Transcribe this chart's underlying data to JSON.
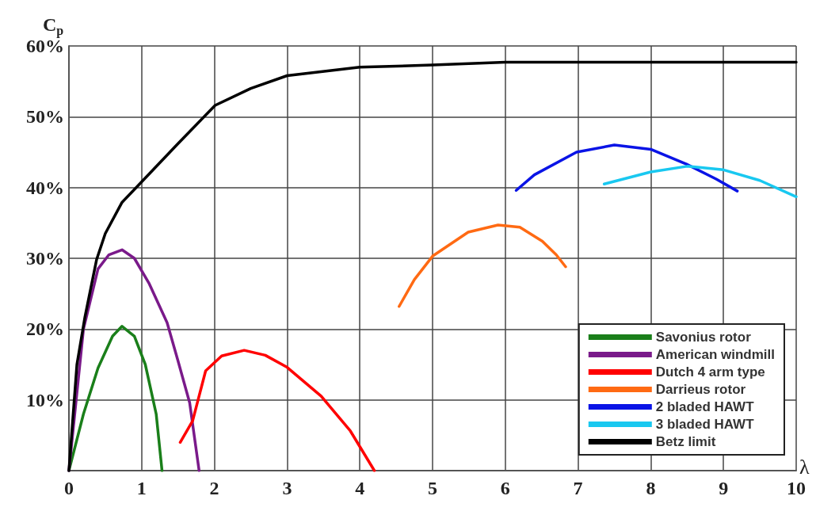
{
  "chart_data": {
    "type": "line",
    "xlabel": "λ",
    "ylabel": "C$_{p}$",
    "xlim": [
      0,
      10
    ],
    "xticks": [
      0,
      1,
      2,
      3,
      4,
      5,
      6,
      7,
      8,
      9,
      10
    ],
    "ylim": [
      0,
      60
    ],
    "yticks": [
      {
        "value": 10,
        "label": "10%"
      },
      {
        "value": 20,
        "label": "20%"
      },
      {
        "value": 30,
        "label": "30%"
      },
      {
        "value": 40,
        "label": "40%"
      },
      {
        "value": 50,
        "label": "50%"
      },
      {
        "value": 60,
        "label": "60%"
      }
    ],
    "grid": true,
    "legend": "bottom right",
    "marker": "none",
    "line_style": "solid",
    "series": [
      {
        "name": "Savonius rotor",
        "color": "#1a7f1a",
        "x": [
          0,
          0.2,
          0.4,
          0.6,
          0.73,
          0.9,
          1.05,
          1.2,
          1.28
        ],
        "values": [
          0,
          8,
          14.5,
          19,
          20.4,
          19,
          15,
          8,
          0
        ]
      },
      {
        "name": "American windmill",
        "color": "#7a1a8a",
        "x": [
          0,
          0.2,
          0.4,
          0.55,
          0.73,
          0.9,
          1.1,
          1.35,
          1.5,
          1.66,
          1.79
        ],
        "values": [
          0,
          20,
          28.5,
          30.5,
          31.2,
          30,
          26.5,
          20.9,
          15.5,
          9.6,
          0
        ]
      },
      {
        "name": "Dutch 4 arm type",
        "color": "#ff0000",
        "x": [
          1.53,
          1.7,
          1.88,
          2.1,
          2.41,
          2.7,
          3,
          3.47,
          3.87,
          4.2
        ],
        "values": [
          4,
          7,
          14.1,
          16.2,
          17,
          16.3,
          14.6,
          10.5,
          5.6,
          0
        ]
      },
      {
        "name": "Darrieus rotor",
        "color": "#ff6a13",
        "x": [
          4.54,
          4.75,
          5,
          5.49,
          5.9,
          6.2,
          6.51,
          6.7,
          6.83
        ],
        "values": [
          23.2,
          27,
          30.3,
          33.7,
          34.7,
          34.4,
          32.4,
          30.5,
          28.8
        ]
      },
      {
        "name": "2 bladed HAWT",
        "color": "#0a14e6",
        "x": [
          6.15,
          6.4,
          6.98,
          7.5,
          8,
          8.49,
          8.9,
          9.19
        ],
        "values": [
          39.6,
          41.8,
          45,
          46,
          45.4,
          43.3,
          41.2,
          39.5
        ]
      },
      {
        "name": "3 bladed HAWT",
        "color": "#19c8f0",
        "x": [
          7.36,
          8,
          8.5,
          9,
          9.5,
          10
        ],
        "values": [
          40.5,
          42.2,
          43,
          42.5,
          41,
          38.7
        ]
      },
      {
        "name": "Betz limit",
        "color": "#000000",
        "x": [
          0,
          0.11,
          0.22,
          0.38,
          0.5,
          0.73,
          1,
          1.5,
          2.01,
          2.5,
          3,
          4,
          5,
          6,
          10
        ],
        "values": [
          0,
          15,
          21.7,
          29.8,
          33.5,
          37.9,
          40.8,
          46.2,
          51.6,
          54,
          55.8,
          57,
          57.3,
          57.7,
          57.7
        ]
      }
    ]
  }
}
